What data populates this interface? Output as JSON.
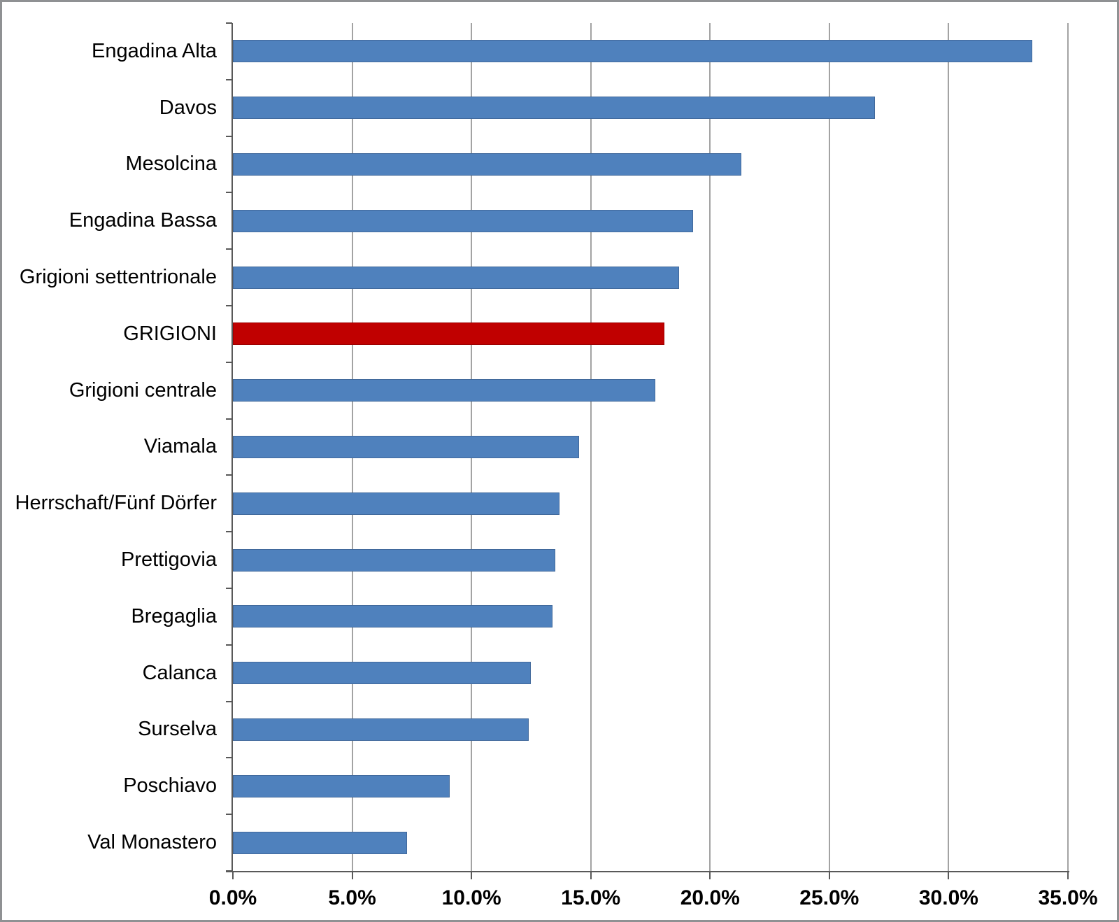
{
  "chart_data": {
    "type": "bar",
    "orientation": "horizontal",
    "title": "",
    "xlabel": "",
    "ylabel": "",
    "categories": [
      "Engadina Alta",
      "Davos",
      "Mesolcina",
      "Engadina Bassa",
      "Grigioni settentrionale",
      "GRIGIONI",
      "Grigioni centrale",
      "Viamala",
      "Herrschaft/Fünf Dörfer",
      "Prettigovia",
      "Bregaglia",
      "Calanca",
      "Surselva",
      "Poschiavo",
      "Val Monastero"
    ],
    "values": [
      33.5,
      26.9,
      21.3,
      19.3,
      18.7,
      18.1,
      17.7,
      14.5,
      13.7,
      13.5,
      13.4,
      12.5,
      12.4,
      9.1,
      7.3
    ],
    "value_unit": "percent",
    "highlight_index": 5,
    "xlim": [
      0,
      35
    ],
    "x_tick_step": 5,
    "x_tick_labels": [
      "0.0%",
      "5.0%",
      "10.0%",
      "15.0%",
      "20.0%",
      "25.0%",
      "30.0%",
      "35.0%"
    ],
    "grid": true,
    "legend": false,
    "colors": {
      "bar": "#4F81BD",
      "bar_border": "#41699C",
      "highlight": "#C00000",
      "highlight_border": "#9E0000"
    }
  }
}
